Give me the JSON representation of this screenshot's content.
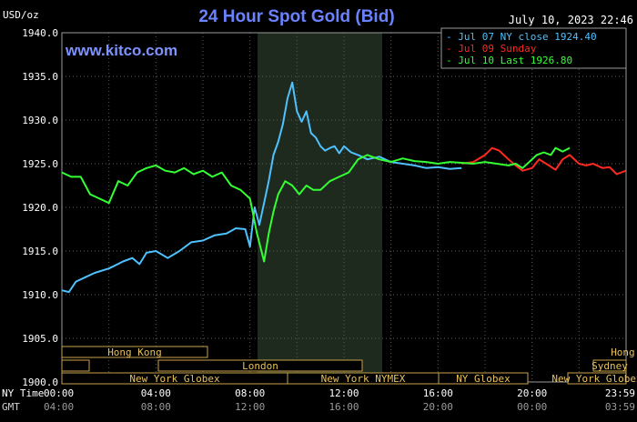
{
  "chart_data": {
    "type": "line",
    "title": "24 Hour Spot Gold (Bid)",
    "ylabel": "USD/oz",
    "watermark": "www.kitco.com",
    "timestamp": "July 10, 2023 22:46",
    "ylim": [
      1900.0,
      1940.0
    ],
    "y_ticks": [
      "1940.0",
      "1935.0",
      "1930.0",
      "1925.0",
      "1920.0",
      "1915.0",
      "1910.0",
      "1905.0",
      "1900.0"
    ],
    "x_axis_label_top": "NY Time",
    "x_axis_label_bottom": "GMT",
    "x_ticks_ny": [
      "00:00",
      "04:00",
      "08:00",
      "12:00",
      "16:00",
      "20:00",
      "23:59"
    ],
    "x_ticks_gmt": [
      "04:00",
      "08:00",
      "12:00",
      "16:00",
      "20:00",
      "00:00",
      "03:59"
    ],
    "grid": true,
    "legend_position": "top-right",
    "series": [
      {
        "name": "Jul 07 NY close 1924.40",
        "color": "#4ec1ff",
        "x": [
          0,
          0.3,
          0.6,
          1.0,
          1.4,
          2.0,
          2.6,
          3.0,
          3.3,
          3.6,
          4.0,
          4.5,
          5.0,
          5.5,
          6.0,
          6.5,
          7.0,
          7.4,
          7.8,
          8.0,
          8.2,
          8.4,
          8.6,
          8.8,
          9.0,
          9.2,
          9.4,
          9.6,
          9.8,
          10.0,
          10.2,
          10.4,
          10.6,
          10.8,
          11.0,
          11.2,
          11.4,
          11.6,
          11.8,
          12.0,
          12.3,
          12.6,
          13.0,
          13.5,
          14.0,
          14.5,
          15.0,
          15.5,
          16.0,
          16.5,
          17.0
        ],
        "y": [
          1910.5,
          1910.3,
          1911.5,
          1912.0,
          1912.5,
          1913.0,
          1913.8,
          1914.2,
          1913.5,
          1914.8,
          1915.0,
          1914.2,
          1915.0,
          1916.0,
          1916.2,
          1916.8,
          1917.0,
          1917.6,
          1917.5,
          1915.5,
          1920.0,
          1918.0,
          1920.5,
          1923.0,
          1926.0,
          1927.5,
          1929.5,
          1932.5,
          1934.3,
          1931.0,
          1929.8,
          1931.0,
          1928.5,
          1928.0,
          1927.0,
          1926.5,
          1926.8,
          1927.0,
          1926.2,
          1927.0,
          1926.3,
          1926.0,
          1925.5,
          1925.8,
          1925.2,
          1925.0,
          1924.8,
          1924.5,
          1924.6,
          1924.4,
          1924.5
        ]
      },
      {
        "name": "Jul 09 Sunday",
        "color": "#ff2a1e",
        "x": [
          17.0,
          17.5,
          18.0,
          18.3,
          18.6,
          19.0,
          19.3,
          19.6,
          20.0,
          20.3,
          20.6,
          21.0,
          21.3,
          21.6,
          22.0,
          22.3,
          22.6,
          23.0,
          23.3,
          23.6,
          23.99
        ],
        "y": [
          1925.0,
          1925.2,
          1926.0,
          1926.8,
          1926.5,
          1925.5,
          1924.8,
          1924.2,
          1924.5,
          1925.5,
          1925.0,
          1924.3,
          1925.5,
          1926.0,
          1925.0,
          1924.8,
          1925.0,
          1924.5,
          1924.6,
          1923.8,
          1924.2
        ]
      },
      {
        "name": "Jul 10 Last 1926.80",
        "color": "#33ff33",
        "x": [
          0,
          0.4,
          0.8,
          1.2,
          1.6,
          2.0,
          2.4,
          2.8,
          3.2,
          3.6,
          4.0,
          4.4,
          4.8,
          5.2,
          5.6,
          6.0,
          6.4,
          6.8,
          7.2,
          7.6,
          8.0,
          8.3,
          8.6,
          8.8,
          9.0,
          9.2,
          9.5,
          9.8,
          10.1,
          10.4,
          10.7,
          11.0,
          11.4,
          11.8,
          12.2,
          12.6,
          13.0,
          13.5,
          14.0,
          14.5,
          15.0,
          15.5,
          16.0,
          16.5,
          17.0,
          17.5,
          18.0,
          18.5,
          19.0,
          19.3,
          19.6,
          20.0,
          20.2,
          20.5,
          20.8,
          21.0,
          21.3,
          21.6
        ],
        "y": [
          1924.0,
          1923.5,
          1923.5,
          1921.5,
          1921.0,
          1920.5,
          1923.0,
          1922.5,
          1924.0,
          1924.5,
          1924.8,
          1924.2,
          1924.0,
          1924.5,
          1923.8,
          1924.2,
          1923.5,
          1924.0,
          1922.5,
          1922.0,
          1921.0,
          1917.0,
          1913.8,
          1917.0,
          1919.5,
          1921.5,
          1923.0,
          1922.5,
          1921.5,
          1922.5,
          1922.0,
          1922.0,
          1923.0,
          1923.5,
          1924.0,
          1925.5,
          1926.0,
          1925.5,
          1925.2,
          1925.6,
          1925.3,
          1925.2,
          1925.0,
          1925.2,
          1925.1,
          1925.0,
          1925.2,
          1925.0,
          1924.8,
          1925.0,
          1924.5,
          1925.5,
          1926.0,
          1926.3,
          1926.0,
          1926.8,
          1926.4,
          1926.8
        ]
      }
    ],
    "sessions": [
      {
        "label": "Hong Kong",
        "start": 0,
        "end": 8
      },
      {
        "label": "",
        "start": 0,
        "end": 1.5
      },
      {
        "label": "London",
        "start": 5.3,
        "end": 16.5
      },
      {
        "label": "New York Globex",
        "start": 0,
        "end": 12.4
      },
      {
        "label": "New York NYMEX",
        "start": 12.4,
        "end": 20.7
      },
      {
        "label": "NY Globex",
        "start": 20.7,
        "end": 25.6
      },
      {
        "label": "Hong Kong",
        "start": 32.3,
        "end": 35.8
      },
      {
        "label": "Sydney",
        "start": 29.2,
        "end": 35.2
      },
      {
        "label": "New York Globex",
        "start": 27.8,
        "end": 35.8
      }
    ]
  }
}
